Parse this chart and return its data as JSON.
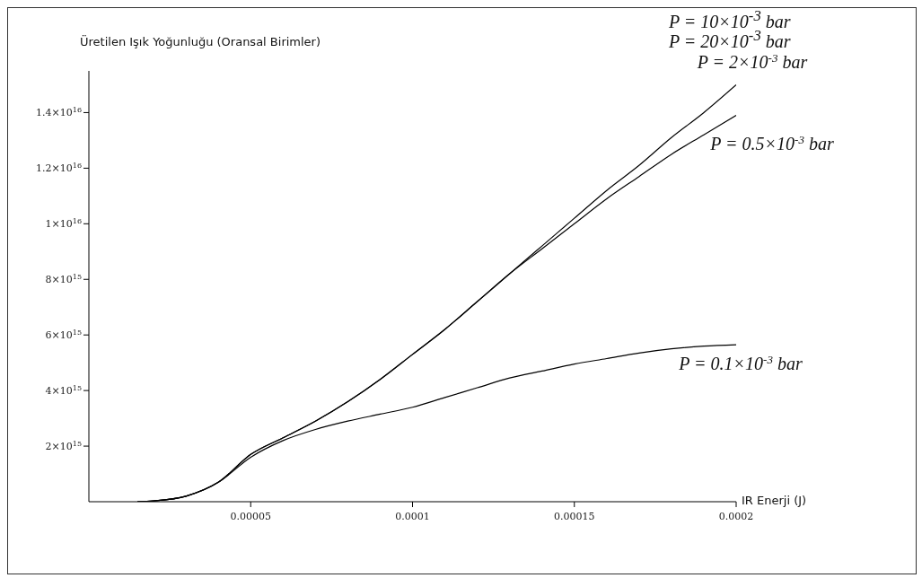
{
  "chart_data": {
    "type": "line",
    "ylabel": "Üretilen Işık Yoğunluğu (Oransal Birimler)",
    "xlabel": "IR Enerji (J)",
    "xlim": [
      0,
      0.0002
    ],
    "xticks": [
      {
        "value": 5e-05,
        "label": "0.00005"
      },
      {
        "value": 0.0001,
        "label": "0.0001"
      },
      {
        "value": 0.00015,
        "label": "0.00015"
      },
      {
        "value": 0.0002,
        "label": "0.0002"
      }
    ],
    "ylim": [
      0,
      1.55e+16
    ],
    "yticks": [
      {
        "value": 2000000000000000.0,
        "label": "2×10$^{15}$"
      },
      {
        "value": 4000000000000000.0,
        "label": "4×10$^{15}$"
      },
      {
        "value": 6000000000000000.0,
        "label": "6×10$^{15}$"
      },
      {
        "value": 8000000000000000.0,
        "label": "8×10$^{15}$"
      },
      {
        "value": 1e+16,
        "label": "1×10$^{16}$"
      },
      {
        "value": 1.2e+16,
        "label": "1.2×10$^{16}$"
      },
      {
        "value": 1.4e+16,
        "label": "1.4×10$^{16}$"
      }
    ],
    "grid": false,
    "legend": false,
    "marker": "none",
    "line_style": "solid",
    "annotations": [
      "P = 10×10$^{-3}$ bar",
      "P = 20×10$^{-3}$ bar"
    ],
    "x": [
      1.5e-05,
      2e-05,
      3e-05,
      4e-05,
      5e-05,
      6e-05,
      7e-05,
      8e-05,
      9e-05,
      0.0001,
      0.00011,
      0.00012,
      0.00013,
      0.00014,
      0.00015,
      0.00016,
      0.00017,
      0.00018,
      0.00019,
      0.0002
    ],
    "series": [
      {
        "name": "P = 2×10$^{-3}$ bar",
        "color": "#000000",
        "values": [
          0,
          30000000000000.0,
          200000000000000.0,
          700000000000000.0,
          1700000000000000.0,
          2300000000000000.0,
          2900000000000000.0,
          3600000000000000.0,
          4400000000000000.0,
          5300000000000000.0,
          6200000000000000.0,
          7200000000000000.0,
          8200000000000000.0,
          9200000000000000.0,
          1.02e+16,
          1.12e+16,
          1.21e+16,
          1.31e+16,
          1.4e+16,
          1.5e+16
        ]
      },
      {
        "name": "P = 0.5×10$^{-3}$ bar",
        "color": "#000000",
        "values": [
          0,
          30000000000000.0,
          200000000000000.0,
          700000000000000.0,
          1700000000000000.0,
          2300000000000000.0,
          2900000000000000.0,
          3600000000000000.0,
          4400000000000000.0,
          5300000000000000.0,
          6200000000000000.0,
          7200000000000000.0,
          8200000000000000.0,
          9100000000000000.0,
          1e+16,
          1.09e+16,
          1.17e+16,
          1.25e+16,
          1.32e+16,
          1.39e+16
        ]
      },
      {
        "name": "P = 0.1×10$^{-3}$ bar",
        "color": "#000000",
        "values": [
          0,
          30000000000000.0,
          200000000000000.0,
          700000000000000.0,
          1600000000000000.0,
          2200000000000000.0,
          2600000000000000.0,
          2900000000000000.0,
          3150000000000000.0,
          3400000000000000.0,
          3750000000000000.0,
          4100000000000000.0,
          4450000000000000.0,
          4700000000000000.0,
          4950000000000000.0,
          5150000000000000.0,
          5350000000000000.0,
          5500000000000000.0,
          5600000000000000.0,
          5650000000000000.0
        ]
      }
    ]
  }
}
